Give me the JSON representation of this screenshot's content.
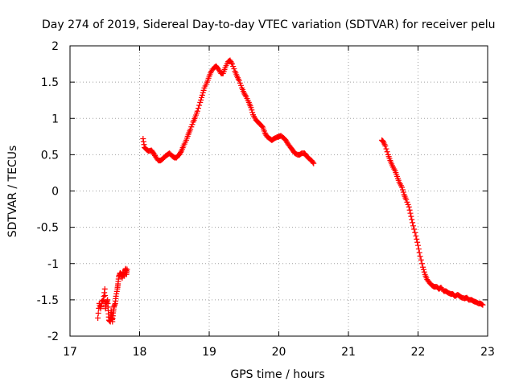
{
  "chart_data": {
    "type": "scatter",
    "title": "Day 274 of 2019, Sidereal Day-to-day VTEC variation (SDTVAR) for receiver pelu",
    "xlabel": "GPS time / hours",
    "ylabel": "SDTVAR / TECUs",
    "xlim": [
      17,
      23
    ],
    "ylim": [
      -2,
      2
    ],
    "xticks": [
      17,
      18,
      19,
      20,
      21,
      22,
      23
    ],
    "yticks": [
      -2,
      -1.5,
      -1,
      -0.5,
      0,
      0.5,
      1,
      1.5,
      2
    ],
    "xtick_labels": [
      "17",
      "18",
      "19",
      "20",
      "21",
      "22",
      "23"
    ],
    "ytick_labels": [
      "-2",
      "-1.5",
      "-1",
      "-0.5",
      "0",
      "0.5",
      "1",
      "1.5",
      "2"
    ],
    "grid": true,
    "marker": "+",
    "color": "#ff0000",
    "series": [
      {
        "name": "SDTVAR",
        "segments": [
          [
            [
              17.4,
              -1.75
            ],
            [
              17.42,
              -1.55
            ],
            [
              17.44,
              -1.62
            ],
            [
              17.46,
              -1.52
            ],
            [
              17.48,
              -1.5
            ],
            [
              17.5,
              -1.35
            ],
            [
              17.51,
              -1.62
            ],
            [
              17.52,
              -1.55
            ],
            [
              17.54,
              -1.5
            ],
            [
              17.55,
              -1.65
            ],
            [
              17.56,
              -1.78
            ],
            [
              17.58,
              -1.8
            ],
            [
              17.59,
              -1.65
            ],
            [
              17.6,
              -1.72
            ],
            [
              17.61,
              -1.8
            ],
            [
              17.62,
              -1.68
            ],
            [
              17.63,
              -1.6
            ],
            [
              17.65,
              -1.55
            ],
            [
              17.66,
              -1.45
            ],
            [
              17.68,
              -1.35
            ],
            [
              17.69,
              -1.28
            ],
            [
              17.7,
              -1.18
            ],
            [
              17.72,
              -1.13
            ],
            [
              17.74,
              -1.15
            ],
            [
              17.75,
              -1.2
            ],
            [
              17.76,
              -1.12
            ],
            [
              17.78,
              -1.17
            ],
            [
              17.79,
              -1.1
            ],
            [
              17.8,
              -1.07
            ],
            [
              17.81,
              -1.15
            ],
            [
              17.82,
              -1.08
            ]
          ],
          [
            [
              18.05,
              0.72
            ],
            [
              18.07,
              0.6
            ],
            [
              18.1,
              0.57
            ],
            [
              18.13,
              0.55
            ],
            [
              18.17,
              0.56
            ],
            [
              18.2,
              0.52
            ],
            [
              18.23,
              0.47
            ],
            [
              18.27,
              0.42
            ],
            [
              18.3,
              0.42
            ],
            [
              18.33,
              0.44
            ],
            [
              18.37,
              0.48
            ],
            [
              18.4,
              0.5
            ],
            [
              18.43,
              0.52
            ],
            [
              18.47,
              0.48
            ],
            [
              18.5,
              0.46
            ],
            [
              18.53,
              0.46
            ],
            [
              18.57,
              0.5
            ],
            [
              18.6,
              0.55
            ],
            [
              18.63,
              0.62
            ],
            [
              18.67,
              0.7
            ],
            [
              18.7,
              0.78
            ],
            [
              18.73,
              0.85
            ],
            [
              18.77,
              0.95
            ],
            [
              18.8,
              1.02
            ],
            [
              18.83,
              1.1
            ],
            [
              18.87,
              1.22
            ],
            [
              18.9,
              1.32
            ],
            [
              18.93,
              1.42
            ],
            [
              18.97,
              1.5
            ],
            [
              19.0,
              1.58
            ],
            [
              19.03,
              1.65
            ],
            [
              19.07,
              1.7
            ],
            [
              19.1,
              1.72
            ],
            [
              19.13,
              1.68
            ],
            [
              19.17,
              1.62
            ],
            [
              19.2,
              1.62
            ],
            [
              19.23,
              1.7
            ],
            [
              19.27,
              1.78
            ],
            [
              19.3,
              1.8
            ],
            [
              19.33,
              1.75
            ],
            [
              19.37,
              1.65
            ],
            [
              19.4,
              1.58
            ],
            [
              19.43,
              1.52
            ],
            [
              19.47,
              1.42
            ],
            [
              19.5,
              1.35
            ],
            [
              19.53,
              1.3
            ],
            [
              19.57,
              1.22
            ],
            [
              19.6,
              1.15
            ],
            [
              19.63,
              1.05
            ],
            [
              19.67,
              0.98
            ],
            [
              19.7,
              0.95
            ],
            [
              19.73,
              0.92
            ],
            [
              19.77,
              0.88
            ],
            [
              19.8,
              0.8
            ],
            [
              19.83,
              0.75
            ],
            [
              19.87,
              0.72
            ],
            [
              19.9,
              0.7
            ],
            [
              19.93,
              0.72
            ],
            [
              19.97,
              0.74
            ],
            [
              20.0,
              0.75
            ],
            [
              20.03,
              0.76
            ],
            [
              20.07,
              0.73
            ],
            [
              20.1,
              0.7
            ],
            [
              20.13,
              0.65
            ],
            [
              20.17,
              0.6
            ],
            [
              20.2,
              0.56
            ],
            [
              20.23,
              0.52
            ],
            [
              20.27,
              0.5
            ],
            [
              20.3,
              0.5
            ],
            [
              20.33,
              0.52
            ],
            [
              20.37,
              0.52
            ],
            [
              20.4,
              0.48
            ],
            [
              20.43,
              0.45
            ],
            [
              20.47,
              0.42
            ],
            [
              20.5,
              0.38
            ]
          ],
          [
            [
              21.48,
              0.7
            ],
            [
              21.5,
              0.68
            ],
            [
              21.53,
              0.62
            ],
            [
              21.57,
              0.5
            ],
            [
              21.6,
              0.42
            ],
            [
              21.63,
              0.35
            ],
            [
              21.67,
              0.28
            ],
            [
              21.7,
              0.2
            ],
            [
              21.73,
              0.12
            ],
            [
              21.77,
              0.05
            ],
            [
              21.8,
              -0.05
            ],
            [
              21.83,
              -0.12
            ],
            [
              21.87,
              -0.22
            ],
            [
              21.9,
              -0.35
            ],
            [
              21.93,
              -0.48
            ],
            [
              21.97,
              -0.62
            ],
            [
              22.0,
              -0.75
            ],
            [
              22.03,
              -0.9
            ],
            [
              22.07,
              -1.05
            ],
            [
              22.1,
              -1.15
            ],
            [
              22.13,
              -1.22
            ],
            [
              22.17,
              -1.27
            ],
            [
              22.2,
              -1.3
            ],
            [
              22.23,
              -1.32
            ],
            [
              22.27,
              -1.32
            ],
            [
              22.3,
              -1.35
            ],
            [
              22.33,
              -1.33
            ],
            [
              22.37,
              -1.38
            ],
            [
              22.4,
              -1.38
            ],
            [
              22.43,
              -1.4
            ],
            [
              22.47,
              -1.42
            ],
            [
              22.5,
              -1.42
            ],
            [
              22.53,
              -1.45
            ],
            [
              22.57,
              -1.43
            ],
            [
              22.6,
              -1.45
            ],
            [
              22.63,
              -1.47
            ],
            [
              22.67,
              -1.48
            ],
            [
              22.7,
              -1.47
            ],
            [
              22.73,
              -1.5
            ],
            [
              22.77,
              -1.5
            ],
            [
              22.8,
              -1.52
            ],
            [
              22.83,
              -1.53
            ],
            [
              22.87,
              -1.55
            ],
            [
              22.9,
              -1.55
            ],
            [
              22.93,
              -1.57
            ]
          ]
        ]
      }
    ]
  }
}
